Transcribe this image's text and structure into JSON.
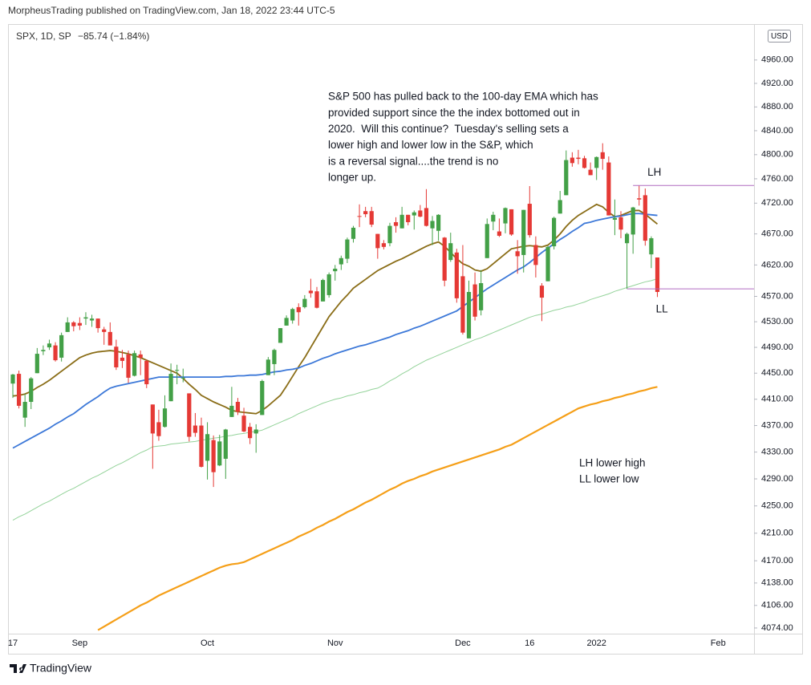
{
  "header": "MorpheusTrading published on TradingView.com, Jan 18, 2022 23:44 UTC-5",
  "footer": "TradingView",
  "chart_data": {
    "type": "candlestick",
    "legend": {
      "symbol": "SPX, 1D, SP",
      "change": "−85.74 (−1.84%)"
    },
    "currency": "USD",
    "log_scale": true,
    "up_color": "#43a047",
    "down_color": "#e53935",
    "ylim": [
      4066,
      5011
    ],
    "yticks": [
      {
        "value": 4960,
        "label": "4960.00"
      },
      {
        "value": 4920,
        "label": "4920.00"
      },
      {
        "value": 4880,
        "label": "4880.00"
      },
      {
        "value": 4840,
        "label": "4840.00"
      },
      {
        "value": 4800,
        "label": "4800.00"
      },
      {
        "value": 4760,
        "label": "4760.00"
      },
      {
        "value": 4720,
        "label": "4720.00"
      },
      {
        "value": 4670,
        "label": "4670.00"
      },
      {
        "value": 4620,
        "label": "4620.00"
      },
      {
        "value": 4570,
        "label": "4570.00"
      },
      {
        "value": 4530,
        "label": "4530.00"
      },
      {
        "value": 4490,
        "label": "4490.00"
      },
      {
        "value": 4450,
        "label": "4450.00"
      },
      {
        "value": 4410,
        "label": "4410.00"
      },
      {
        "value": 4370,
        "label": "4370.00"
      },
      {
        "value": 4330,
        "label": "4330.00"
      },
      {
        "value": 4290,
        "label": "4290.00"
      },
      {
        "value": 4250,
        "label": "4250.00"
      },
      {
        "value": 4210,
        "label": "4210.00"
      },
      {
        "value": 4170,
        "label": "4170.00"
      },
      {
        "value": 4138,
        "label": "4138.00"
      },
      {
        "value": 4106,
        "label": "4106.00"
      },
      {
        "value": 4074,
        "label": "4074.00"
      }
    ],
    "categories": [
      "17",
      null,
      null,
      null,
      null,
      null,
      null,
      null,
      null,
      null,
      null,
      "Sep",
      null,
      null,
      null,
      null,
      null,
      null,
      null,
      null,
      null,
      null,
      null,
      null,
      null,
      null,
      null,
      null,
      null,
      null,
      null,
      null,
      "Oct",
      null,
      null,
      null,
      null,
      null,
      null,
      null,
      null,
      null,
      null,
      null,
      null,
      null,
      null,
      null,
      null,
      null,
      null,
      null,
      null,
      "Nov",
      null,
      null,
      null,
      null,
      null,
      null,
      null,
      null,
      null,
      null,
      null,
      null,
      null,
      null,
      null,
      null,
      null,
      null,
      null,
      null,
      "Dec",
      null,
      null,
      null,
      null,
      null,
      null,
      null,
      null,
      null,
      null,
      "16",
      null,
      null,
      null,
      null,
      null,
      null,
      null,
      null,
      null,
      null,
      "2022",
      null,
      null,
      null,
      null,
      null,
      null,
      null,
      null,
      null,
      null,
      null,
      null,
      null,
      null,
      null,
      null,
      null,
      null,
      null,
      "Feb",
      null,
      null,
      null,
      null,
      null
    ],
    "open": [
      4434,
      4449,
      4382,
      4406,
      4450,
      4484,
      4490,
      4493,
      4474,
      4514,
      4529,
      4528,
      4535,
      4532,
      4535,
      4518,
      4514,
      4491,
      4474,
      4479,
      4446,
      4479,
      4469,
      4402,
      4375,
      4368,
      4407,
      4455,
      4442,
      4419,
      4370,
      4370,
      4317,
      4348,
      4310,
      4320,
      4383,
      4406,
      4385,
      4368,
      4358,
      4386,
      4447,
      4464,
      4497,
      4524,
      4532,
      4553,
      4553,
      4579,
      4578,
      4562,
      4572,
      4610,
      4621,
      4630,
      4662,
      4699,
      4707,
      4707,
      4670,
      4655,
      4655,
      4689,
      4679,
      4701,
      4700,
      4708,
      4712,
      4679,
      4675,
      4664,
      4628,
      4640,
      4602,
      4504,
      4589,
      4548,
      4631,
      4690,
      4674,
      4687,
      4710,
      4642,
      4636,
      4719,
      4652,
      4587,
      4594,
      4650,
      4703,
      4733,
      4795,
      4795,
      4794,
      4775,
      4778,
      4804,
      4787,
      4693,
      4697,
      4655,
      4669,
      4728,
      4733,
      4637,
      4632,
      null,
      null,
      null,
      null,
      null,
      null,
      null,
      null,
      null,
      null,
      null,
      null,
      null,
      null,
      null
    ],
    "high": [
      4449,
      4454,
      4418,
      4444,
      4489,
      4493,
      4502,
      4498,
      4513,
      4537,
      4531,
      4537,
      4545,
      4541,
      4535,
      4522,
      4529,
      4502,
      4486,
      4485,
      4485,
      4485,
      4471,
      4402,
      4394,
      4416,
      4465,
      4463,
      4457,
      4419,
      4389,
      4382,
      4375,
      4355,
      4356,
      4365,
      4429,
      4412,
      4397,
      4374,
      4372,
      4440,
      4475,
      4488,
      4520,
      4540,
      4552,
      4559,
      4572,
      4598,
      4585,
      4598,
      4608,
      4620,
      4635,
      4664,
      4683,
      4718,
      4714,
      4714,
      4670,
      4660,
      4688,
      4697,
      4714,
      4701,
      4708,
      4717,
      4743,
      4699,
      4702,
      4665,
      4672,
      4646,
      4652,
      4595,
      4608,
      4612,
      4695,
      4706,
      4695,
      4713,
      4710,
      4660,
      4709,
      4748,
      4666,
      4591,
      4651,
      4698,
      4740,
      4807,
      4804,
      4808,
      4798,
      4787,
      4797,
      4819,
      4797,
      4726,
      4707,
      4672,
      4714,
      4749,
      4744,
      4666,
      4632,
      null,
      null,
      null,
      null,
      null,
      null,
      null,
      null,
      null,
      null,
      null,
      null,
      null,
      null,
      null
    ],
    "low": [
      4412,
      4396,
      4368,
      4395,
      4450,
      4478,
      4486,
      4468,
      4468,
      4514,
      4515,
      4517,
      4525,
      4522,
      4513,
      4494,
      4493,
      4455,
      4458,
      4435,
      4445,
      4447,
      4427,
      4305,
      4347,
      4367,
      4407,
      4433,
      4436,
      4346,
      4353,
      4307,
      4289,
      4278,
      4309,
      4290,
      4383,
      4386,
      4360,
      4342,
      4329,
      4386,
      4447,
      4447,
      4497,
      4524,
      4527,
      4524,
      4551,
      4568,
      4551,
      4562,
      4568,
      4595,
      4612,
      4623,
      4656,
      4681,
      4697,
      4681,
      4630,
      4645,
      4650,
      4672,
      4679,
      4684,
      4677,
      4697,
      4682,
      4652,
      4659,
      4586,
      4625,
      4560,
      4510,
      4504,
      4532,
      4540,
      4631,
      4676,
      4665,
      4671,
      4667,
      4606,
      4608,
      4664,
      4600,
      4531,
      4594,
      4645,
      4703,
      4733,
      4780,
      4784,
      4777,
      4766,
      4758,
      4775,
      4700,
      4668,
      4663,
      4582,
      4638,
      4716,
      4651,
      4615,
      4569,
      null,
      null,
      null,
      null,
      null,
      null,
      null,
      null,
      null,
      null,
      null,
      null,
      null,
      null,
      null
    ],
    "close": [
      4448,
      4400,
      4406,
      4442,
      4480,
      4486,
      4496,
      4470,
      4509,
      4529,
      4523,
      4524,
      4537,
      4535,
      4520,
      4514,
      4493,
      4459,
      4469,
      4443,
      4481,
      4474,
      4433,
      4358,
      4354,
      4396,
      4449,
      4455,
      4443,
      4353,
      4359,
      4308,
      4357,
      4300,
      4346,
      4364,
      4400,
      4391,
      4361,
      4351,
      4364,
      4438,
      4471,
      4486,
      4520,
      4536,
      4550,
      4545,
      4566,
      4575,
      4552,
      4596,
      4605,
      4614,
      4631,
      4661,
      4680,
      4698,
      4702,
      4685,
      4647,
      4649,
      4683,
      4683,
      4701,
      4689,
      4705,
      4698,
      4683,
      4691,
      4701,
      4595,
      4655,
      4567,
      4513,
      4577,
      4538,
      4591,
      4686,
      4701,
      4667,
      4712,
      4669,
      4634,
      4709,
      4668,
      4620,
      4568,
      4649,
      4696,
      4725,
      4791,
      4786,
      4793,
      4778,
      4766,
      4796,
      4793,
      4700,
      4696,
      4677,
      4670,
      4713,
      4726,
      4659,
      4663,
      4577,
      null,
      null,
      null,
      null,
      null,
      null,
      null,
      null,
      null,
      null,
      null,
      null,
      null,
      null,
      null
    ],
    "series": [
      {
        "color": "#8a6d17",
        "values": [
          4415,
          4416,
          4418,
          4422,
          4428,
          4433,
          4439,
          4446,
          4453,
          4460,
          4467,
          4474,
          4478,
          4481,
          4483,
          4484,
          4485,
          4484,
          4482,
          4480,
          4477,
          4474,
          4470,
          4466,
          4462,
          4458,
          4454,
          4450,
          4442,
          4433,
          4425,
          4416,
          4411,
          4406,
          4402,
          4398,
          4393,
          4391,
          4390,
          4389,
          4388,
          4393,
          4400,
          4408,
          4416,
          4430,
          4445,
          4460,
          4474,
          4490,
          4506,
          4522,
          4538,
          4550,
          4562,
          4572,
          4583,
          4590,
          4597,
          4604,
          4611,
          4616,
          4621,
          4626,
          4630,
          4635,
          4640,
          4645,
          4650,
          4654,
          4657,
          4650,
          4640,
          4630,
          4622,
          4618,
          4612,
          4610,
          4614,
          4622,
          4630,
          4638,
          4646,
          4648,
          4650,
          4651,
          4650,
          4649,
          4652,
          4660,
          4670,
          4682,
          4692,
          4700,
          4706,
          4712,
          4718,
          4714,
          4705,
          4698,
          4700,
          4704,
          4708,
          4708,
          4702,
          4694,
          4686,
          null,
          null,
          null,
          null,
          null,
          null,
          null,
          null,
          null,
          null,
          null,
          null,
          null,
          null,
          null
        ]
      },
      {
        "color": "#3c78d8",
        "values": [
          4336,
          4341,
          4346,
          4351,
          4356,
          4361,
          4366,
          4372,
          4377,
          4383,
          4388,
          4395,
          4402,
          4408,
          4414,
          4421,
          4427,
          4430,
          4432,
          4434,
          4436,
          4438,
          4440,
          4442,
          4444,
          4444,
          4444,
          4444,
          4444,
          4444,
          4444,
          4444,
          4444,
          4444,
          4444,
          4445,
          4445,
          4446,
          4446,
          4447,
          4447,
          4448,
          4450,
          4452,
          4453,
          4455,
          4456,
          4458,
          4462,
          4465,
          4469,
          4473,
          4476,
          4480,
          4483,
          4486,
          4489,
          4492,
          4494,
          4497,
          4500,
          4503,
          4506,
          4510,
          4513,
          4516,
          4520,
          4523,
          4527,
          4531,
          4535,
          4539,
          4543,
          4547,
          4554,
          4561,
          4568,
          4575,
          4582,
          4588,
          4594,
          4600,
          4606,
          4612,
          4617,
          4624,
          4632,
          4640,
          4647,
          4654,
          4661,
          4667,
          4674,
          4680,
          4687,
          4689,
          4692,
          4694,
          4696,
          4698,
          4699,
          4701,
          4703,
          4703,
          4702,
          4701,
          4700,
          null,
          null,
          null,
          null,
          null,
          null,
          null,
          null,
          null,
          null,
          null,
          null,
          null,
          null,
          null
        ]
      },
      {
        "color": "#94d39a",
        "values": [
          4229,
          4234,
          4238,
          4243,
          4248,
          4253,
          4257,
          4262,
          4267,
          4272,
          4276,
          4281,
          4286,
          4291,
          4295,
          4300,
          4305,
          4310,
          4314,
          4319,
          4324,
          4329,
          4333,
          4338,
          4339,
          4340,
          4342,
          4343,
          4344,
          4345,
          4346,
          4348,
          4349,
          4351,
          4352,
          4354,
          4355,
          4357,
          4358,
          4360,
          4361,
          4363,
          4367,
          4371,
          4375,
          4379,
          4383,
          4388,
          4392,
          4396,
          4400,
          4404,
          4407,
          4410,
          4412,
          4415,
          4417,
          4420,
          4422,
          4425,
          4427,
          4432,
          4438,
          4443,
          4449,
          4454,
          4460,
          4465,
          4470,
          4474,
          4478,
          4482,
          4486,
          4490,
          4494,
          4498,
          4502,
          4505,
          4509,
          4513,
          4517,
          4521,
          4525,
          4529,
          4533,
          4537,
          4540,
          4542,
          4545,
          4548,
          4550,
          4553,
          4555,
          4558,
          4561,
          4565,
          4568,
          4571,
          4574,
          4578,
          4581,
          4584,
          4587,
          4590,
          4593,
          4595,
          4598,
          null,
          null,
          null,
          null,
          null,
          null,
          null,
          null,
          null,
          null,
          null,
          null,
          null,
          null,
          null
        ]
      },
      {
        "color": "#f59f18",
        "values": [
          null,
          null,
          null,
          null,
          null,
          null,
          null,
          null,
          null,
          null,
          null,
          null,
          null,
          null,
          4071,
          4076,
          4081,
          4086,
          4091,
          4096,
          4101,
          4106,
          4110,
          4115,
          4120,
          4124,
          4128,
          4132,
          4136,
          4140,
          4144,
          4148,
          4152,
          4156,
          4160,
          4163,
          4165,
          4166,
          4168,
          4172,
          4176,
          4180,
          4184,
          4188,
          4192,
          4196,
          4200,
          4205,
          4209,
          4213,
          4218,
          4222,
          4227,
          4231,
          4236,
          4241,
          4245,
          4250,
          4255,
          4259,
          4264,
          4269,
          4274,
          4278,
          4283,
          4287,
          4290,
          4294,
          4297,
          4301,
          4304,
          4307,
          4310,
          4313,
          4316,
          4319,
          4322,
          4325,
          4328,
          4331,
          4334,
          4338,
          4341,
          4346,
          4351,
          4356,
          4361,
          4366,
          4371,
          4376,
          4381,
          4386,
          4391,
          4396,
          4399,
          4402,
          4404,
          4407,
          4409,
          4412,
          4414,
          4417,
          4419,
          4422,
          4424,
          4427,
          4429,
          null,
          null,
          null,
          null,
          null,
          null,
          null,
          null,
          null,
          null,
          null,
          null,
          null,
          null,
          null
        ]
      }
    ],
    "levels": [
      {
        "label": "LH",
        "value": 4749,
        "color": "#b06cc0"
      },
      {
        "label": "LL",
        "value": 4582,
        "color": "#b06cc0"
      }
    ],
    "annotation": {
      "lines": [
        "S&P 500 has pulled back to the 100-day EMA which has",
        "provided support since the the index bottomed out in",
        "2020.  Will this continue?  Tuesday's selling sets a",
        "lower high and lower low in the S&P, which",
        "is a reversal signal....the trend is no",
        "longer up."
      ]
    },
    "key": [
      "LH lower high",
      "LL lower low"
    ]
  }
}
